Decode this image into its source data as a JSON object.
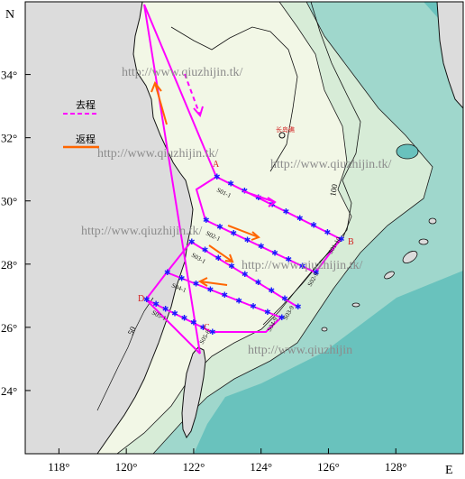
{
  "axes": {
    "north_label": "N",
    "east_label": "E",
    "lat_ticks": [
      {
        "label": "34°",
        "value": 34
      },
      {
        "label": "32°",
        "value": 32
      },
      {
        "label": "30°",
        "value": 30
      },
      {
        "label": "28°",
        "value": 28
      },
      {
        "label": "26°",
        "value": 26
      },
      {
        "label": "24°",
        "value": 24
      }
    ],
    "lon_ticks": [
      {
        "label": "118°",
        "value": 118
      },
      {
        "label": "120°",
        "value": 120
      },
      {
        "label": "122°",
        "value": 122
      },
      {
        "label": "124°",
        "value": 124
      },
      {
        "label": "126°",
        "value": 126
      },
      {
        "label": "128°",
        "value": 128
      }
    ],
    "lon_range": [
      117,
      130
    ],
    "lat_range": [
      22,
      36.3
    ]
  },
  "legend": {
    "outbound_label": "去程",
    "return_label": "返程",
    "outbound_color": "#ff00ff",
    "return_color": "#ff6600"
  },
  "stations": {
    "A": "A",
    "B": "B",
    "C": "C",
    "D": "D"
  },
  "sections": [
    {
      "label_start": "S01-1",
      "label_end": "S01-10"
    },
    {
      "label_start": "S02-1",
      "label_end": "S02-9"
    },
    {
      "label_start": "S03-1",
      "label_end": "S03-9"
    },
    {
      "label_start": "S04-1",
      "label_end": "S04-9"
    },
    {
      "label_start": "S05-1",
      "label_end": "S05-8"
    }
  ],
  "contour_labels": {
    "c50": "50",
    "c100": "100"
  },
  "place_label": "长岛礁",
  "watermarks": [
    "http://www.qiuzhijin.tk/",
    "http://www.qiuzhijin.tk/",
    "http://www.qiuzhijin.tk/",
    "http://www.qiuzhijin.tk/",
    "http://www.qiuzhijin.tk/",
    "http://www.qiuzhijin"
  ],
  "colors": {
    "land": "#dcdcdc",
    "shallow": "#f2f7e6",
    "mid": "#d7ecd7",
    "deep": "#9fd7cc",
    "ocean": "#69c2bd",
    "watermark": "#8c8c8c",
    "station_marker": "#1a1aff"
  }
}
